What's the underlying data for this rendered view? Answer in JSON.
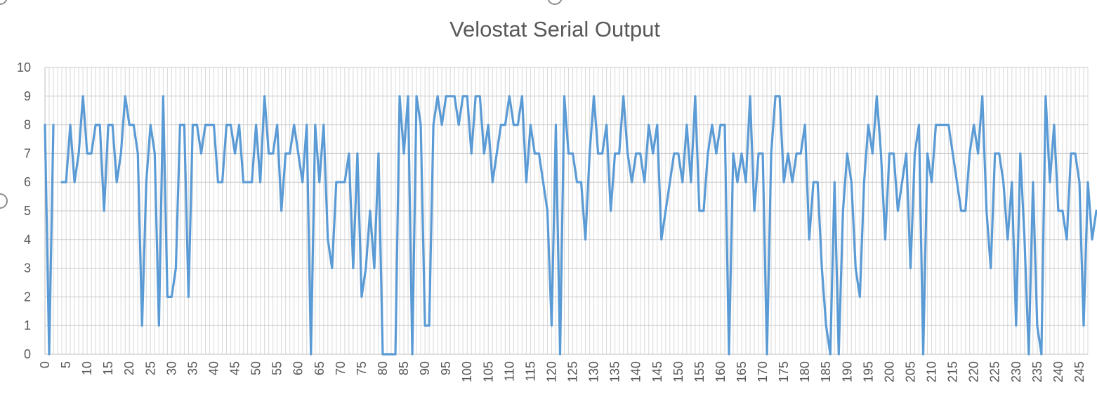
{
  "chart_data": {
    "type": "line",
    "title": "Velostat Serial Output",
    "xlabel": "",
    "ylabel": "",
    "ylim": [
      0,
      10
    ],
    "xlim": [
      0,
      247
    ],
    "yticks": [
      0,
      1,
      2,
      3,
      4,
      5,
      6,
      7,
      8,
      9,
      10
    ],
    "xtick_step": 5,
    "x_last_tick": 245,
    "grid": true,
    "legend": "none",
    "series": [
      {
        "name": "Velostat Serial Output",
        "color": "#5b9bd5",
        "values": [
          8,
          0,
          8,
          null,
          6,
          6,
          8,
          6,
          7,
          9,
          7,
          7,
          8,
          8,
          5,
          8,
          8,
          6,
          7,
          9,
          8,
          8,
          7,
          1,
          6,
          8,
          7,
          1,
          9,
          2,
          2,
          3,
          8,
          8,
          2,
          8,
          8,
          7,
          8,
          8,
          8,
          6,
          6,
          8,
          8,
          7,
          8,
          6,
          6,
          6,
          8,
          6,
          9,
          7,
          7,
          8,
          5,
          7,
          7,
          8,
          7,
          6,
          8,
          0,
          8,
          6,
          8,
          4,
          3,
          6,
          6,
          6,
          7,
          3,
          7,
          2,
          3,
          5,
          3,
          7,
          0,
          0,
          0,
          0,
          9,
          7,
          9,
          0,
          9,
          8,
          1,
          1,
          8,
          9,
          8,
          9,
          9,
          9,
          8,
          9,
          9,
          7,
          9,
          9,
          7,
          8,
          6,
          7,
          8,
          8,
          9,
          8,
          8,
          9,
          6,
          8,
          7,
          7,
          6,
          5,
          1,
          8,
          0,
          9,
          7,
          7,
          6,
          6,
          4,
          7,
          9,
          7,
          7,
          8,
          5,
          7,
          7,
          9,
          7,
          6,
          7,
          7,
          6,
          8,
          7,
          8,
          4,
          5,
          6,
          7,
          7,
          6,
          8,
          6,
          9,
          5,
          5,
          7,
          8,
          7,
          8,
          8,
          0,
          7,
          6,
          7,
          6,
          9,
          5,
          7,
          7,
          0,
          7,
          9,
          9,
          6,
          7,
          6,
          7,
          7,
          8,
          4,
          6,
          6,
          3,
          1,
          0,
          6,
          0,
          5,
          7,
          6,
          3,
          2,
          6,
          8,
          7,
          9,
          7,
          4,
          7,
          7,
          5,
          6,
          7,
          3,
          7,
          8,
          0,
          7,
          6,
          8,
          8,
          8,
          8,
          7,
          6,
          5,
          5,
          7,
          8,
          7,
          9,
          5,
          3,
          7,
          7,
          6,
          4,
          6,
          1,
          7,
          4,
          0,
          6,
          1,
          0,
          9,
          6,
          8,
          5,
          5,
          4,
          7,
          7,
          6,
          1,
          6,
          4,
          5
        ]
      }
    ]
  }
}
